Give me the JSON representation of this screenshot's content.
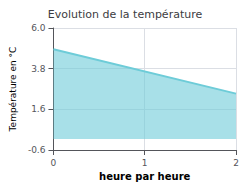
{
  "chart_data": {
    "type": "area",
    "title": "Evolution de la température",
    "xlabel": "heure par heure",
    "ylabel": "Température en °C",
    "x": [
      0,
      2
    ],
    "values": [
      4.85,
      2.45
    ],
    "color": "#6eccd8",
    "xlim": [
      0,
      2
    ],
    "xticks": [
      0,
      1,
      2
    ],
    "ylim": [
      -0.6,
      6.0
    ],
    "yticks": [
      -0.6,
      1.6,
      3.8,
      {
        "value": 6.0,
        "label": "6.0"
      }
    ],
    "grid": true
  }
}
